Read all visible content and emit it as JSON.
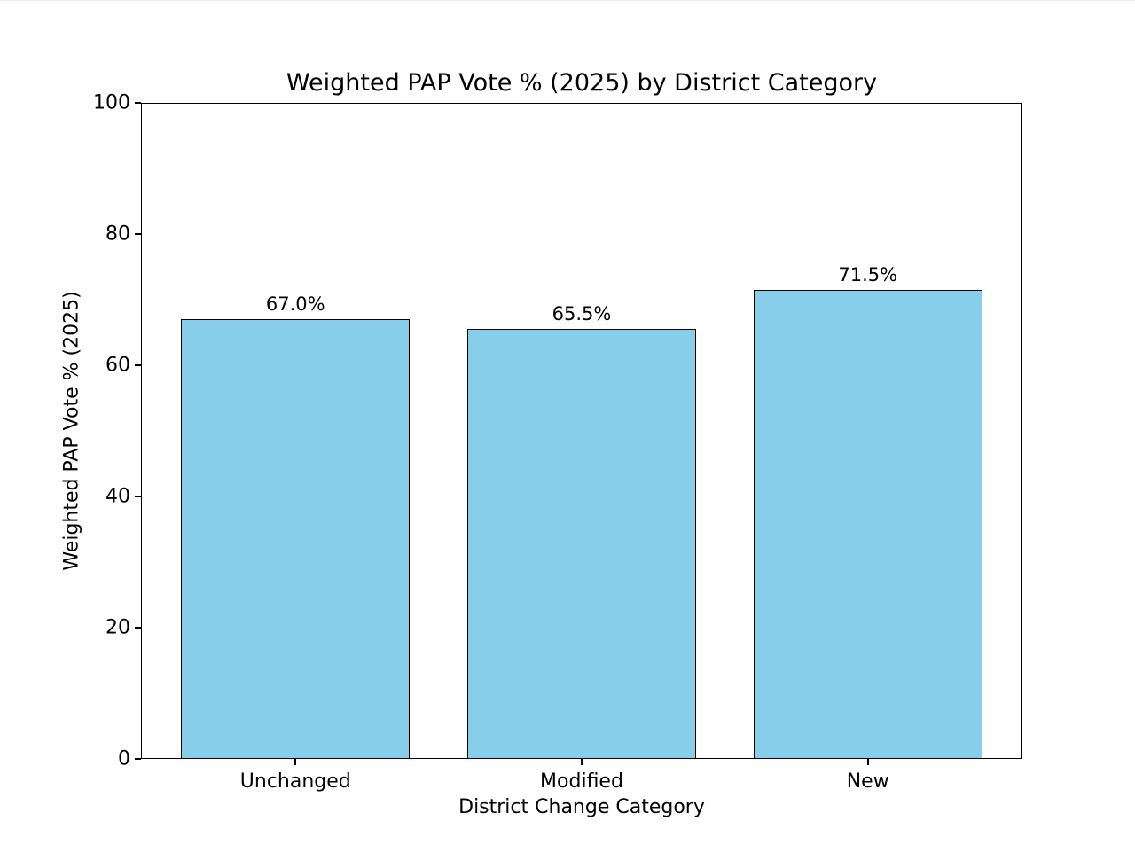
{
  "chart_data": {
    "type": "bar",
    "title": "Weighted PAP Vote % (2025) by District Category",
    "categories": [
      "Unchanged",
      "Modified",
      "New"
    ],
    "values": [
      67.0,
      65.5,
      71.5
    ],
    "bar_labels": [
      "67.0%",
      "65.5%",
      "71.5%"
    ],
    "xlabel": "District Change Category",
    "ylabel": "Weighted PAP Vote % (2025)",
    "ylim": [
      0,
      100
    ],
    "yticks": [
      0,
      20,
      40,
      60,
      80,
      100
    ],
    "bar_color": "#87CEEB",
    "bar_edge_color": "#000000",
    "grid": false,
    "legend_position": "none",
    "bar_relative_width": 0.8
  }
}
